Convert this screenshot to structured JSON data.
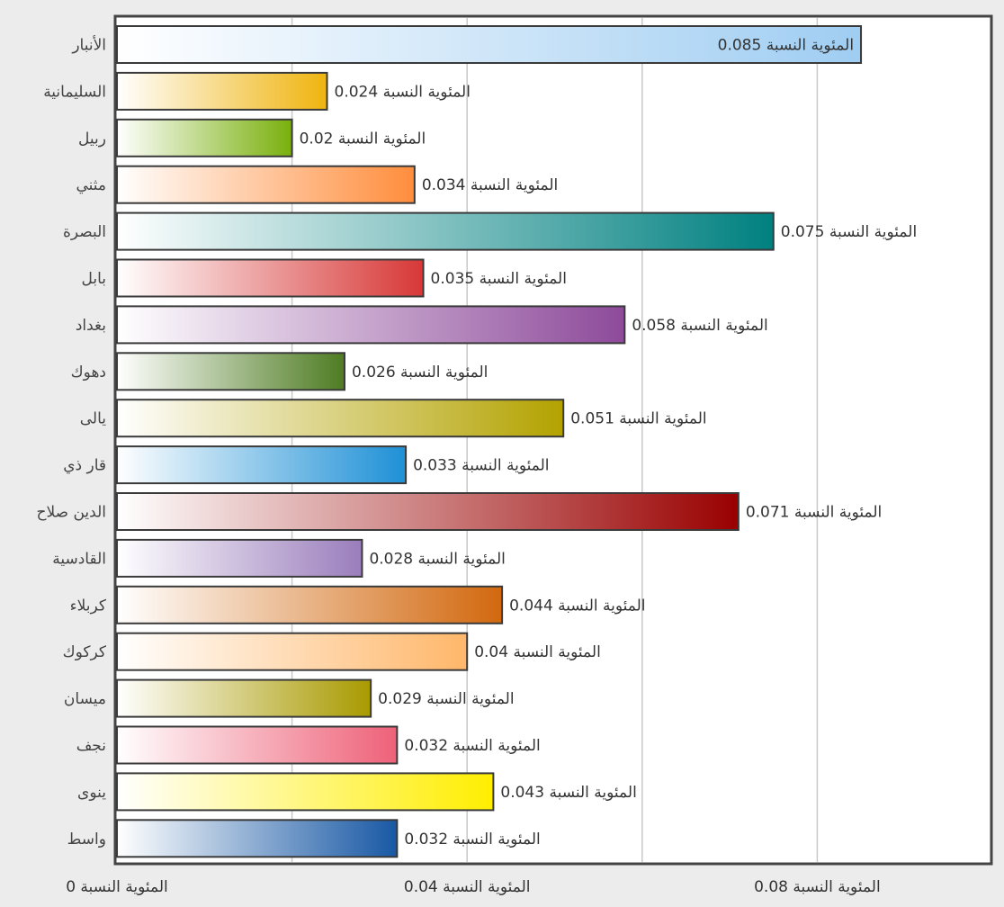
{
  "chart_data": {
    "type": "bar",
    "orientation": "horizontal",
    "title": "",
    "xlabel": "",
    "ylabel": "",
    "xlim": [
      0,
      0.1
    ],
    "grid": true,
    "categories": [
      "الأنبار",
      "السليمانية",
      "ربيل",
      "مثني",
      "البصرة",
      "بابل",
      "بغداد",
      "دهوك",
      "يالى",
      "قار ذي",
      "الدين صلاح",
      "القادسية",
      "كربلاء",
      "كركوك",
      "ميسان",
      "نجف",
      "ينوى",
      "واسط"
    ],
    "values": [
      0.085,
      0.024,
      0.02,
      0.034,
      0.075,
      0.035,
      0.058,
      0.026,
      0.051,
      0.033,
      0.071,
      0.028,
      0.044,
      0.04,
      0.029,
      0.032,
      0.043,
      0.032
    ],
    "value_labels": [
      "المئوية النسبة 0.085",
      "المئوية النسبة 0.024",
      "المئوية النسبة 0.02",
      "المئوية النسبة 0.034",
      "المئوية النسبة 0.075",
      "المئوية النسبة 0.035",
      "المئوية النسبة 0.058",
      "المئوية النسبة 0.026",
      "المئوية النسبة 0.051",
      "المئوية النسبة 0.033",
      "المئوية النسبة 0.071",
      "المئوية النسبة 0.028",
      "المئوية النسبة 0.044",
      "المئوية النسبة 0.04",
      "المئوية النسبة 0.029",
      "المئوية النسبة 0.032",
      "المئوية النسبة 0.043",
      "المئوية النسبة 0.032"
    ],
    "colors": [
      "#9fcdf2",
      "#efb40e",
      "#79b00c",
      "#ff8d3c",
      "#008080",
      "#d73837",
      "#8d4a9a",
      "#4e7c22",
      "#b3a200",
      "#1e90d6",
      "#990000",
      "#9a7dbc",
      "#d2680e",
      "#ffb76a",
      "#a89a00",
      "#ee6178",
      "#ffee00",
      "#1858a4"
    ],
    "ticks": [
      {
        "value": 0,
        "label": "المئوية النسبة 0"
      },
      {
        "value": 0.04,
        "label": "المئوية النسبة 0.04"
      },
      {
        "value": 0.08,
        "label": "المئوية النسبة 0.08"
      }
    ],
    "gridlines": [
      0.02,
      0.04,
      0.06,
      0.08
    ]
  }
}
